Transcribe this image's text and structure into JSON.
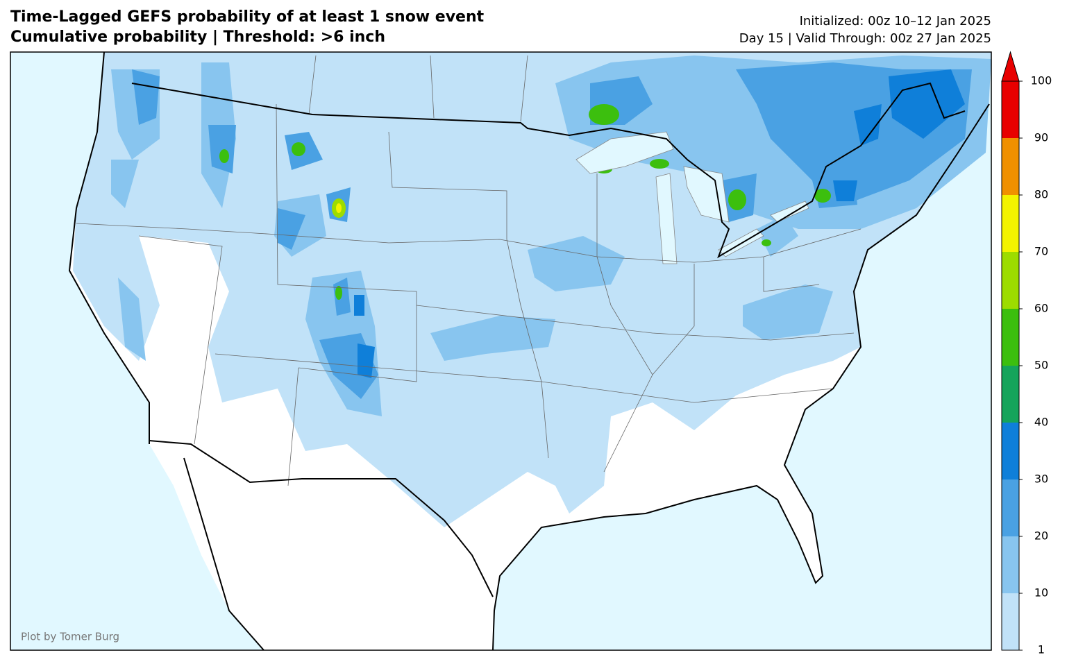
{
  "header": {
    "title": "Time-Lagged GEFS probability of at least 1 snow event",
    "subtitle": "Cumulative probability | Threshold: >6 inch",
    "initialized": "Initialized: 00z 10–12 Jan 2025",
    "valid": "Day 15 | Valid Through: 00z 27 Jan 2025"
  },
  "credit": "Plot by Tomer Burg",
  "colorbar": {
    "levels": [
      1,
      10,
      20,
      30,
      40,
      50,
      60,
      70,
      80,
      90,
      100
    ],
    "colors": [
      "#c1e2f8",
      "#88c5ef",
      "#4aa1e3",
      "#0f7fd9",
      "#15a45b",
      "#3cbf0e",
      "#9ddc00",
      "#f3f300",
      "#f09000",
      "#e80000"
    ]
  }
}
